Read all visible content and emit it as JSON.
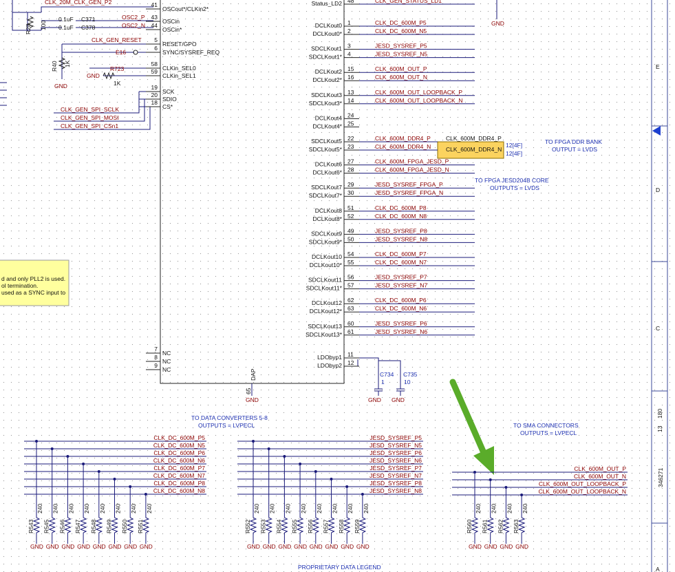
{
  "gnd": "GND",
  "ic": {
    "left_pins": [
      {
        "num": "41",
        "name": "OSCout*/CLKin2*",
        "net": "CLK_20M_CLK_GEN_P2"
      },
      {
        "num": "43",
        "name": "OSCin",
        "net": "OSC2_P"
      },
      {
        "num": "44",
        "name": "OSCin*",
        "net": "OSC2_N"
      },
      {
        "num": "5",
        "name": "RESET/GPO",
        "net": "CLK_GEN_RESET"
      },
      {
        "num": "6",
        "name": "SYNC/SYSREF_REQ",
        "net": "E16"
      },
      {
        "num": "58",
        "name": "CLKin_SEL0"
      },
      {
        "num": "59",
        "name": "CLKin_SEL1"
      },
      {
        "num": "19",
        "name": "SCK"
      },
      {
        "num": "20",
        "name": "SDIO"
      },
      {
        "num": "18",
        "name": "CS*"
      },
      {
        "num": "7",
        "name": "NC"
      },
      {
        "num": "8",
        "name": "NC"
      },
      {
        "num": "9",
        "name": "NC"
      }
    ],
    "spi_nets": [
      "CLK_GEN_SPI_SCLK",
      "CLK_GEN_SPI_MOSI",
      "CLK_GEN_SPI_CSn1"
    ],
    "right_pins": [
      {
        "num": "48",
        "name": "Status_LD2",
        "net": "CLK_GEN_STATUS_LD1"
      },
      {
        "num": "1",
        "name": "DCLKout0",
        "net": "CLK_DC_600M_P5"
      },
      {
        "num": "2",
        "name": "DCLKout0*",
        "net": "CLK_DC_600M_N5"
      },
      {
        "num": "3",
        "name": "SDCLKout1",
        "net": "JESD_SYSREF_P5"
      },
      {
        "num": "4",
        "name": "SDCLKout1*",
        "net": "JESD_SYSREF_N5"
      },
      {
        "num": "15",
        "name": "DCLKout2",
        "net": "CLK_600M_OUT_P"
      },
      {
        "num": "16",
        "name": "DCLKout2*",
        "net": "CLK_600M_OUT_N"
      },
      {
        "num": "13",
        "name": "SDCLKout3",
        "net": "CLK_600M_OUT_LOOPBACK_P"
      },
      {
        "num": "14",
        "name": "SDCLKout3*",
        "net": "CLK_600M_OUT_LOOPBACK_N"
      },
      {
        "num": "24",
        "name": "DCLKout4"
      },
      {
        "num": "25",
        "name": "DCLKout4*"
      },
      {
        "num": "22",
        "name": "SDCLKout5",
        "net": "CLK_600M_DDR4_P"
      },
      {
        "num": "23",
        "name": "SDCLKout5*",
        "net": "CLK_600M_DDR4_N"
      },
      {
        "num": "27",
        "name": "DCLKout6",
        "net": "CLK_600M_FPGA_JESD_P"
      },
      {
        "num": "28",
        "name": "DCLKout6*",
        "net": "CLK_600M_FPGA_JESD_N"
      },
      {
        "num": "29",
        "name": "SDCLKout7",
        "net": "JESD_SYSREF_FPGA_P"
      },
      {
        "num": "30",
        "name": "SDCLKout7*",
        "net": "JESD_SYSREF_FPGA_N"
      },
      {
        "num": "51",
        "name": "DCLKout8",
        "net": "CLK_DC_600M_P8"
      },
      {
        "num": "52",
        "name": "DCLKout8*",
        "net": "CLK_DC_600M_N8"
      },
      {
        "num": "49",
        "name": "SDCLKout9",
        "net": "JESD_SYSREF_P8"
      },
      {
        "num": "50",
        "name": "SDCLKout9*",
        "net": "JESD_SYSREF_N8"
      },
      {
        "num": "54",
        "name": "DCLKout10",
        "net": "CLK_DC_600M_P7"
      },
      {
        "num": "55",
        "name": "DCLKout10*",
        "net": "CLK_DC_600M_N7"
      },
      {
        "num": "56",
        "name": "SDCLKout11",
        "net": "JESD_SYSREF_P7"
      },
      {
        "num": "57",
        "name": "SDCLKout11*",
        "net": "JESD_SYSREF_N7"
      },
      {
        "num": "62",
        "name": "DCLKout12",
        "net": "CLK_DC_600M_P6"
      },
      {
        "num": "63",
        "name": "DCLKout12*",
        "net": "CLK_DC_600M_N6"
      },
      {
        "num": "60",
        "name": "SDCLKout13",
        "net": "JESD_SYSREF_P6"
      },
      {
        "num": "61",
        "name": "SDCLKout13*",
        "net": "JESD_SYSREF_N6"
      },
      {
        "num": "11",
        "name": "LDObyp1"
      },
      {
        "num": "12",
        "name": "LDObyp2"
      }
    ],
    "dap": {
      "num": "65",
      "name": "DAP"
    }
  },
  "components": [
    {
      "ref": "C371",
      "value": "0.1uF"
    },
    {
      "ref": "C378",
      "value": "0.1uF"
    },
    {
      "ref": "R28",
      "value": "100"
    },
    {
      "ref": "R40",
      "value": "1K"
    },
    {
      "ref": "R723",
      "value": "1K"
    },
    {
      "ref": "C734",
      "value": "1"
    },
    {
      "ref": "C735",
      "value": "10"
    }
  ],
  "offpage": {
    "ref": "12[4F]"
  },
  "notes": {
    "ddr": [
      "TO FPGA DDR BANK",
      "OUTPUT = LVDS"
    ],
    "jesd": [
      "TO FPGA JESD204B CORE",
      "OUTPUTS = LVDS"
    ],
    "legend": "PROPRIETARY DATA LEGEND",
    "yellow": [
      "d and only PLL2 is used.",
      "ol termination.",
      "used as a SYNC input to"
    ]
  },
  "groups": [
    {
      "note": [
        "TO DATA CONVERTERS 5-8",
        "OUTPUTS = LVPECL"
      ],
      "nets": [
        "CLK_DC_600M_P5",
        "CLK_DC_600M_N5",
        "CLK_DC_600M_P6",
        "CLK_DC_600M_N6",
        "CLK_DC_600M_P7",
        "CLK_DC_600M_N7",
        "CLK_DC_600M_P8",
        "CLK_DC_600M_N8"
      ],
      "resistors": [
        {
          "ref": "R543",
          "value": "240"
        },
        {
          "ref": "R545",
          "value": "240"
        },
        {
          "ref": "R546",
          "value": "240"
        },
        {
          "ref": "R547",
          "value": "240"
        },
        {
          "ref": "R548",
          "value": "240"
        },
        {
          "ref": "R549",
          "value": "240"
        },
        {
          "ref": "R550",
          "value": "240"
        },
        {
          "ref": "R551",
          "value": "240"
        }
      ]
    },
    {
      "nets": [
        "JESD_SYSREF_P5",
        "JESD_SYSREF_N5",
        "JESD_SYSREF_P6",
        "JESD_SYSREF_N6",
        "JESD_SYSREF_P7",
        "JESD_SYSREF_N7",
        "JESD_SYSREF_P8",
        "JESD_SYSREF_N8"
      ],
      "resistors": [
        {
          "ref": "R552",
          "value": "240"
        },
        {
          "ref": "R553",
          "value": "240"
        },
        {
          "ref": "R554",
          "value": "240"
        },
        {
          "ref": "R555",
          "value": "240"
        },
        {
          "ref": "R556",
          "value": "240"
        },
        {
          "ref": "R557",
          "value": "240"
        },
        {
          "ref": "R558",
          "value": "240"
        },
        {
          "ref": "R559",
          "value": "240"
        }
      ]
    },
    {
      "note": [
        "TO SMA CONNECTORS",
        "OUTPUTS = LVPECL"
      ],
      "nets": [
        "CLK_600M_OUT_P",
        "CLK_600M_OUT_N",
        "CLK_600M_OUT_LOOPBACK_P",
        "CLK_600M_OUT_LOOPBACK_N"
      ],
      "resistors": [
        {
          "ref": "R560",
          "value": "240"
        },
        {
          "ref": "R561",
          "value": "240"
        },
        {
          "ref": "R562",
          "value": "240"
        },
        {
          "ref": "R563",
          "value": "240"
        }
      ]
    }
  ],
  "border": {
    "rows": [
      "E",
      "D",
      "C",
      "A"
    ],
    "doc": "346271",
    "sheet": "13",
    "rev": "180"
  }
}
